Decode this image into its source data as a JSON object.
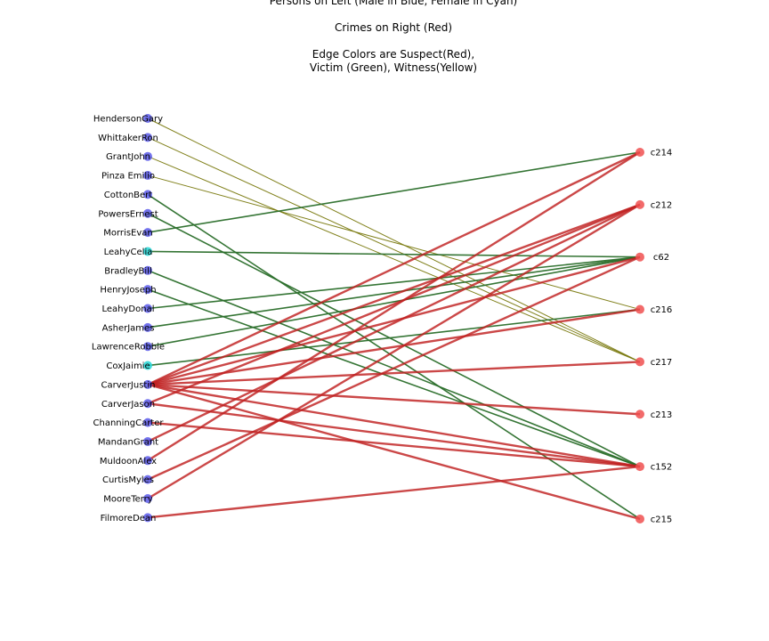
{
  "title_lines": [
    "Persons on Left (Male in Blue, Female in Cyan)",
    "Crimes on Right (Red)",
    "Edge Colors are Suspect(Red),",
    "Victim (Green), Witness(Yellow)"
  ],
  "colors": {
    "male": "#5050e8",
    "female": "#30d8d8",
    "crime": "#f05050",
    "suspect": "#c02020",
    "victim": "#2a6e2a",
    "witness": "#7a7a10"
  },
  "persons": [
    {
      "id": "HendersonGary",
      "gender": "male"
    },
    {
      "id": "WhittakerRon",
      "gender": "male"
    },
    {
      "id": "GrantJohn",
      "gender": "male"
    },
    {
      "id": "Pinza Emilio",
      "gender": "male"
    },
    {
      "id": "CottonBert",
      "gender": "male"
    },
    {
      "id": "PowersErnest",
      "gender": "male"
    },
    {
      "id": "MorrisEvan",
      "gender": "male"
    },
    {
      "id": "LeahyCelia",
      "gender": "female"
    },
    {
      "id": "BradleyBill",
      "gender": "male"
    },
    {
      "id": "HenryJoseph",
      "gender": "male"
    },
    {
      "id": "LeahyDonal",
      "gender": "male"
    },
    {
      "id": "AsherJames",
      "gender": "male"
    },
    {
      "id": "LawrenceRobbie",
      "gender": "male"
    },
    {
      "id": "CoxJaimie",
      "gender": "female"
    },
    {
      "id": "CarverJustin",
      "gender": "male"
    },
    {
      "id": "CarverJason",
      "gender": "male"
    },
    {
      "id": "ChanningCarter",
      "gender": "male"
    },
    {
      "id": "MandanGrant",
      "gender": "male"
    },
    {
      "id": "MuldoonAlex",
      "gender": "male"
    },
    {
      "id": "CurtisMyles",
      "gender": "male"
    },
    {
      "id": "MooreTerry",
      "gender": "male"
    },
    {
      "id": "FilmoreDean",
      "gender": "male"
    }
  ],
  "crimes": [
    "c214",
    "c212",
    "c62",
    "c216",
    "c217",
    "c213",
    "c152",
    "c215"
  ],
  "edges": [
    {
      "person": "HendersonGary",
      "crime": "c217",
      "role": "witness"
    },
    {
      "person": "WhittakerRon",
      "crime": "c217",
      "role": "witness"
    },
    {
      "person": "GrantJohn",
      "crime": "c217",
      "role": "witness"
    },
    {
      "person": "Pinza Emilio",
      "crime": "c216",
      "role": "witness"
    },
    {
      "person": "CottonBert",
      "crime": "c215",
      "role": "victim"
    },
    {
      "person": "PowersErnest",
      "crime": "c152",
      "role": "victim"
    },
    {
      "person": "MorrisEvan",
      "crime": "c214",
      "role": "victim"
    },
    {
      "person": "LeahyCelia",
      "crime": "c62",
      "role": "victim"
    },
    {
      "person": "BradleyBill",
      "crime": "c152",
      "role": "victim"
    },
    {
      "person": "HenryJoseph",
      "crime": "c152",
      "role": "victim"
    },
    {
      "person": "LeahyDonal",
      "crime": "c62",
      "role": "victim"
    },
    {
      "person": "AsherJames",
      "crime": "c62",
      "role": "victim"
    },
    {
      "person": "LawrenceRobbie",
      "crime": "c62",
      "role": "victim"
    },
    {
      "person": "CoxJaimie",
      "crime": "c216",
      "role": "victim"
    },
    {
      "person": "CarverJustin",
      "crime": "c214",
      "role": "suspect"
    },
    {
      "person": "CarverJustin",
      "crime": "c212",
      "role": "suspect"
    },
    {
      "person": "CarverJustin",
      "crime": "c62",
      "role": "suspect"
    },
    {
      "person": "CarverJustin",
      "crime": "c216",
      "role": "suspect"
    },
    {
      "person": "CarverJustin",
      "crime": "c217",
      "role": "suspect"
    },
    {
      "person": "CarverJustin",
      "crime": "c213",
      "role": "suspect"
    },
    {
      "person": "CarverJustin",
      "crime": "c152",
      "role": "suspect"
    },
    {
      "person": "CarverJustin",
      "crime": "c215",
      "role": "suspect"
    },
    {
      "person": "CarverJason",
      "crime": "c212",
      "role": "suspect"
    },
    {
      "person": "CarverJason",
      "crime": "c152",
      "role": "suspect"
    },
    {
      "person": "ChanningCarter",
      "crime": "c152",
      "role": "suspect"
    },
    {
      "person": "MandanGrant",
      "crime": "c212",
      "role": "suspect"
    },
    {
      "person": "MuldoonAlex",
      "crime": "c214",
      "role": "suspect"
    },
    {
      "person": "CurtisMyles",
      "crime": "c62",
      "role": "suspect"
    },
    {
      "person": "MooreTerry",
      "crime": "c212",
      "role": "suspect"
    },
    {
      "person": "FilmoreDean",
      "crime": "c152",
      "role": "suspect"
    }
  ]
}
